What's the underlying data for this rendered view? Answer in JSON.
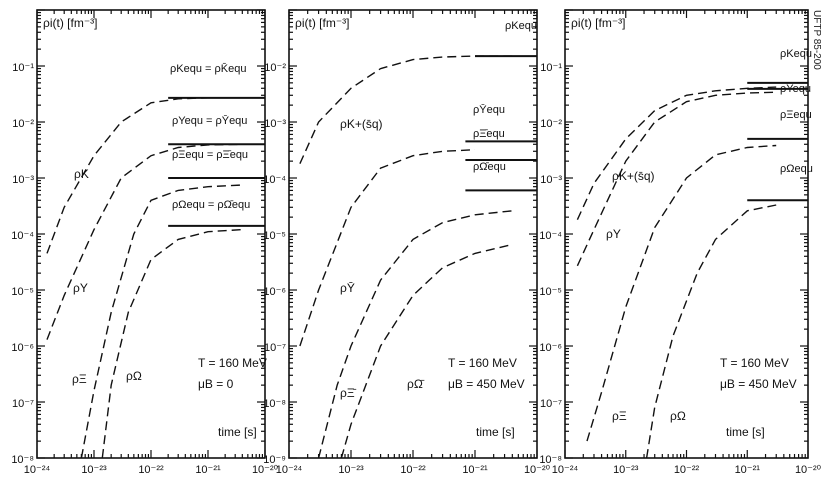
{
  "side_label": "UFTP 85-200",
  "chart_data": [
    {
      "type": "line",
      "title": "ρi(t) [fm⁻³]",
      "xlabel": "time [s]",
      "x_scale": "log",
      "y_scale": "log",
      "xlim": [
        1e-24,
        1e-20
      ],
      "ylim": [
        1e-08,
        1
      ],
      "x_ticks": [
        "10⁻²⁴",
        "10⁻²³",
        "10⁻²²",
        "10⁻²¹",
        "10⁻²⁰"
      ],
      "y_ticks": [
        "10⁻⁸",
        "10⁻⁷",
        "10⁻⁶",
        "10⁻⁵",
        "10⁻⁴",
        "10⁻³",
        "10⁻²",
        "10⁻¹"
      ],
      "params": [
        "T = 160 MeV",
        "μB = 0"
      ],
      "series": [
        {
          "name": "ρK",
          "x": [
            1.5e-24,
            3e-24,
            1e-23,
            3e-23,
            1e-22,
            3e-22,
            1e-21
          ],
          "y": [
            4.5e-05,
            0.0003,
            0.0025,
            0.01,
            0.022,
            0.026,
            0.027
          ]
        },
        {
          "name": "ρY",
          "x": [
            1.5e-24,
            3e-24,
            1e-23,
            3e-23,
            1e-22,
            3e-22,
            1e-21,
            4e-21
          ],
          "y": [
            1.3e-06,
            8e-06,
            0.00012,
            0.001,
            0.0025,
            0.0035,
            0.0039,
            0.004
          ]
        },
        {
          "name": "ρΞ",
          "x": [
            6e-24,
            1e-23,
            2e-23,
            5e-23,
            1e-22,
            3e-22,
            1e-21,
            4e-21
          ],
          "y": [
            1e-08,
            1.6e-07,
            4e-06,
            0.0001,
            0.0004,
            0.0006,
            0.0007,
            0.00075
          ]
        },
        {
          "name": "ρΩ",
          "x": [
            1.4e-23,
            2e-23,
            4e-23,
            1e-22,
            3e-22,
            1e-21,
            4e-21
          ],
          "y": [
            1e-08,
            2e-07,
            4e-06,
            3.5e-05,
            8e-05,
            0.00011,
            0.00012
          ]
        }
      ],
      "equilibrium": [
        {
          "label": "ρKequ = ρK̄equ",
          "y": 0.027,
          "x_start": 2e-22
        },
        {
          "label": "ρYequ = ρȲequ",
          "y": 0.004,
          "x_start": 2e-22
        },
        {
          "label": "ρΞequ = ρΞ̄equ",
          "y": 0.001,
          "x_start": 2e-22
        },
        {
          "label": "ρΩequ = ρΩ̄equ",
          "y": 0.00014,
          "x_start": 2e-22
        }
      ]
    },
    {
      "type": "line",
      "title": "ρi(t) [fm⁻³]",
      "xlabel": "time [s]",
      "x_scale": "log",
      "y_scale": "log",
      "xlim": [
        1e-24,
        1e-20
      ],
      "ylim": [
        1e-09,
        0.1
      ],
      "x_ticks": [
        "10⁻²⁴",
        "10⁻²³",
        "10⁻²²",
        "10⁻²¹",
        "10⁻²⁰"
      ],
      "y_ticks": [
        "10⁻⁹",
        "10⁻⁸",
        "10⁻⁷",
        "10⁻⁶",
        "10⁻⁵",
        "10⁻⁴",
        "10⁻³",
        "10⁻²"
      ],
      "params": [
        "T = 160 MeV",
        "μB = 450 MeV"
      ],
      "series": [
        {
          "name": "ρK+(s̄q)",
          "x": [
            1.5e-24,
            3e-24,
            1e-23,
            3e-23,
            1e-22,
            3e-22,
            1e-21,
            4e-21
          ],
          "y": [
            0.00018,
            0.001,
            0.004,
            0.009,
            0.013,
            0.0145,
            0.015,
            0.015
          ]
        },
        {
          "name": "ρȲ",
          "x": [
            1.5e-24,
            3e-24,
            1e-23,
            3e-23,
            1e-22,
            3e-22,
            1e-21
          ],
          "y": [
            1e-07,
            1e-06,
            3e-05,
            0.00015,
            0.00025,
            0.0003,
            0.00032
          ]
        },
        {
          "name": "ρΞ̄",
          "x": [
            3e-24,
            6e-24,
            1e-23,
            3e-23,
            1e-22,
            3e-22,
            1e-21,
            4e-21
          ],
          "y": [
            1e-09,
            2e-08,
            1e-07,
            1.5e-06,
            8e-06,
            1.6e-05,
            2.2e-05,
            2.6e-05
          ]
        },
        {
          "name": "ρΩ̄",
          "x": [
            7e-24,
            1e-23,
            3e-23,
            1e-22,
            3e-22,
            1e-21,
            4e-21
          ],
          "y": [
            1e-09,
            4e-09,
            1e-07,
            8e-07,
            2.5e-06,
            4.5e-06,
            6.5e-06
          ]
        }
      ],
      "equilibrium": [
        {
          "label": "ρKequ",
          "y": 0.015,
          "x_start": 1e-21
        },
        {
          "label": "ρȲequ",
          "y": 0.00045,
          "x_start": 7e-22
        },
        {
          "label": "ρΞ̄equ",
          "y": 0.00021,
          "x_start": 7e-22
        },
        {
          "label": "ρΩ̄equ",
          "y": 6e-05,
          "x_start": 7e-22
        }
      ]
    },
    {
      "type": "line",
      "title": "ρi(t) [fm⁻³]",
      "xlabel": "time [s]",
      "x_scale": "log",
      "y_scale": "log",
      "xlim": [
        1e-24,
        1e-20
      ],
      "ylim": [
        1e-08,
        1
      ],
      "x_ticks": [
        "10⁻²⁴",
        "10⁻²³",
        "10⁻²²",
        "10⁻²¹",
        "10⁻²⁰"
      ],
      "y_ticks": [
        "10⁻⁸",
        "10⁻⁷",
        "10⁻⁶",
        "10⁻⁵",
        "10⁻⁴",
        "10⁻³",
        "10⁻²",
        "10⁻¹"
      ],
      "params": [
        "T = 160 MeV",
        "μB = 450 MeV"
      ],
      "series": [
        {
          "name": "ρK+(s̄q)",
          "x": [
            1.6e-24,
            3e-24,
            1e-23,
            3e-23,
            1e-22,
            3e-22,
            1e-21,
            3e-21
          ],
          "y": [
            0.00018,
            0.0008,
            0.005,
            0.016,
            0.03,
            0.036,
            0.04,
            0.042
          ]
        },
        {
          "name": "ρY",
          "x": [
            1.6e-24,
            3e-24,
            1e-23,
            3e-23,
            1e-22,
            3e-22,
            1e-21,
            3e-21
          ],
          "y": [
            2.7e-05,
            0.00012,
            0.002,
            0.01,
            0.023,
            0.03,
            0.033,
            0.034
          ]
        },
        {
          "name": "ρΞ",
          "x": [
            2.3e-24,
            4e-24,
            1e-23,
            3e-23,
            1e-22,
            3e-22,
            1e-21,
            3e-21
          ],
          "y": [
            2e-08,
            1.5e-07,
            5e-06,
            0.00013,
            0.001,
            0.0026,
            0.0035,
            0.0038
          ]
        },
        {
          "name": "ρΩ",
          "x": [
            2.2e-23,
            3e-23,
            6e-23,
            1.5e-22,
            3e-22,
            1e-21,
            3e-21
          ],
          "y": [
            1e-08,
            8e-08,
            1.5e-06,
            2e-05,
            8e-05,
            0.00026,
            0.00033
          ]
        }
      ],
      "equilibrium": [
        {
          "label": "ρKequ",
          "y": 0.05,
          "x_start": 1e-21
        },
        {
          "label": "ρYequ",
          "y": 0.039,
          "x_start": 1e-21
        },
        {
          "label": "ρΞequ",
          "y": 0.005,
          "x_start": 1e-21
        },
        {
          "label": "ρΩequ",
          "y": 0.0004,
          "x_start": 1e-21
        }
      ]
    }
  ]
}
